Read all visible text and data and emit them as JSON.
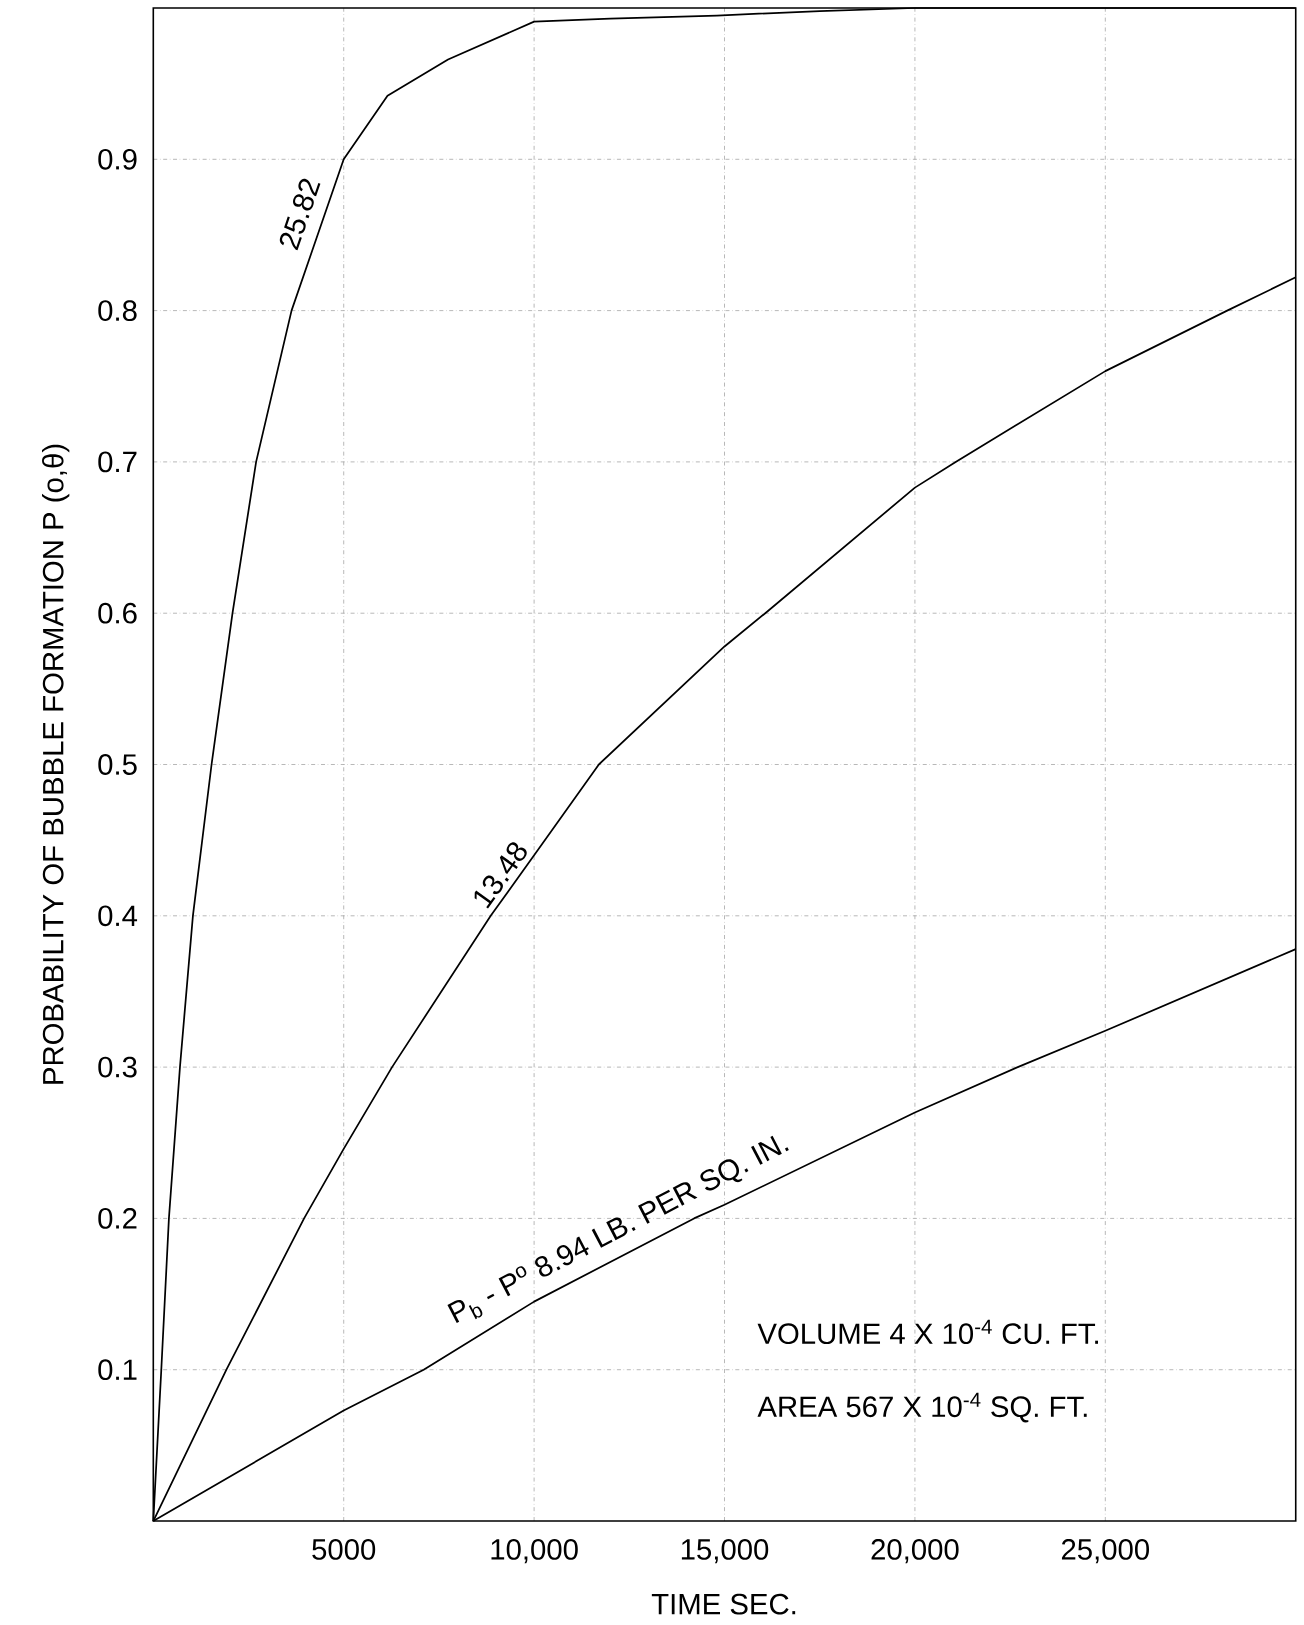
{
  "chart_data": {
    "type": "line",
    "xlabel": "TIME SEC.",
    "ylabel": "PROBABILITY OF BUBBLE FORMATION      P (o,θ)",
    "xlim": [
      0,
      30000
    ],
    "ylim": [
      0,
      1
    ],
    "xticks": [
      5000,
      {
        "value": 10000,
        "label": "10,000"
      },
      {
        "value": 15000,
        "label": "15,000"
      },
      {
        "value": 20000,
        "label": "20,000"
      },
      {
        "value": 25000,
        "label": "25,000"
      }
    ],
    "yticks": [
      0.1,
      0.2,
      0.3,
      0.4,
      0.5,
      0.6,
      0.7,
      0.8,
      0.9
    ],
    "grid": true,
    "marker": "none",
    "line_style": "solid",
    "series": [
      {
        "color": "#000000",
        "x": [
          0,
          210,
          410,
          700,
          1040,
          1530,
          2080,
          2700,
          3630,
          5000,
          6150,
          7740,
          10000,
          12000,
          14800,
          17500,
          20000,
          25000,
          30000
        ],
        "values": [
          0,
          0.1,
          0.2,
          0.3,
          0.4,
          0.5,
          0.6,
          0.7,
          0.8,
          0.9,
          0.942,
          0.966,
          0.991,
          0.993,
          0.995,
          0.998,
          1.0,
          1.0,
          1.0
        ]
      },
      {
        "color": "#000000",
        "x": [
          0,
          1920,
          3960,
          5000,
          6270,
          8860,
          10000,
          11700,
          15000,
          16070,
          20000,
          21070,
          25000,
          28200,
          30000
        ],
        "values": [
          0,
          0.1,
          0.2,
          0.246,
          0.3,
          0.4,
          0.44,
          0.5,
          0.578,
          0.6,
          0.683,
          0.7,
          0.76,
          0.8,
          0.822
        ]
      },
      {
        "color": "#000000",
        "x": [
          0,
          5000,
          7100,
          10000,
          14200,
          15000,
          20000,
          22700,
          25000,
          30000
        ],
        "values": [
          0,
          0.073,
          0.1,
          0.145,
          0.2,
          0.209,
          0.27,
          0.3,
          0.324,
          0.378
        ]
      }
    ],
    "annotations": [
      {
        "text": "25.82",
        "x": 4300,
        "y": 0.86
      },
      {
        "text": "13.48",
        "x": 9500,
        "y": 0.42
      },
      {
        "text": "P$_{b}$ - P$^{o}$   8.94  LB. PER  SQ. IN.",
        "x": 12500,
        "y": 0.18
      },
      "VOLUME     4 X 10$^{-4}$ CU. FT.",
      "AREA     567 X 10$^{-4}$ SQ. FT."
    ]
  }
}
